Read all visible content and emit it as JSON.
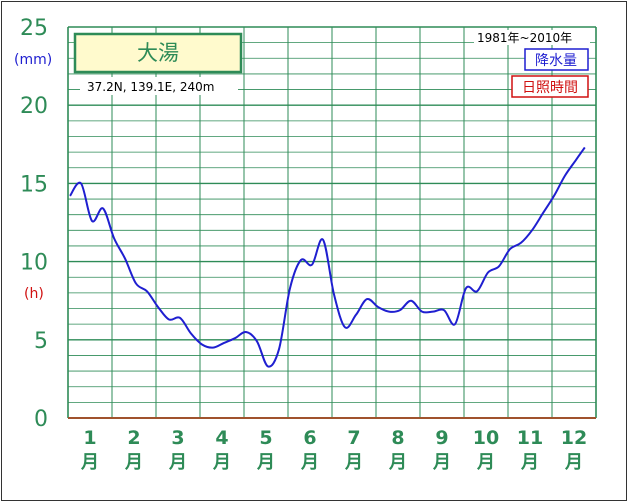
{
  "chart_data": {
    "type": "line",
    "title": "大湯",
    "location": "37.2N,  139.1E,  240m",
    "period": "1981年~2010年",
    "legend": [
      {
        "label": "降水量",
        "color": "#1f1fd0"
      },
      {
        "label": "日照時間",
        "color": "#d01010"
      }
    ],
    "units": {
      "precip": "(mm)",
      "sunshine": "(h)"
    },
    "yticks": [
      "0",
      "5",
      "10",
      "15",
      "20",
      "25"
    ],
    "ylim": [
      0,
      25
    ],
    "xlim": [
      1,
      12.7
    ],
    "months": [
      {
        "num": "1",
        "kanji": "月"
      },
      {
        "num": "2",
        "kanji": "月"
      },
      {
        "num": "3",
        "kanji": "月"
      },
      {
        "num": "4",
        "kanji": "月"
      },
      {
        "num": "5",
        "kanji": "月"
      },
      {
        "num": "6",
        "kanji": "月"
      },
      {
        "num": "7",
        "kanji": "月"
      },
      {
        "num": "8",
        "kanji": "月"
      },
      {
        "num": "9",
        "kanji": "月"
      },
      {
        "num": "10",
        "kanji": "月"
      },
      {
        "num": "11",
        "kanji": "月"
      },
      {
        "num": "12",
        "kanji": "月"
      }
    ],
    "series": [
      {
        "name": "降水量",
        "color": "#1f1fd0",
        "x": [
          1.0,
          1.25,
          1.5,
          1.75,
          2.0,
          2.25,
          2.5,
          2.75,
          3.0,
          3.25,
          3.5,
          3.75,
          4.0,
          4.25,
          4.5,
          4.75,
          5.0,
          5.25,
          5.5,
          5.75,
          6.0,
          6.25,
          6.5,
          6.75,
          7.0,
          7.25,
          7.5,
          7.75,
          8.0,
          8.25,
          8.5,
          8.75,
          9.0,
          9.25,
          9.5,
          9.75,
          10.0,
          10.25,
          10.5,
          10.75,
          11.0,
          11.25,
          11.5,
          11.75,
          12.0,
          12.25,
          12.5,
          12.7
        ],
        "y": [
          14.2,
          15.0,
          12.6,
          13.4,
          11.5,
          10.2,
          8.6,
          8.1,
          7.1,
          6.3,
          6.4,
          5.4,
          4.7,
          4.5,
          4.8,
          5.1,
          5.5,
          4.9,
          3.3,
          4.4,
          8.3,
          10.1,
          9.8,
          11.4,
          7.9,
          5.8,
          6.6,
          7.6,
          7.1,
          6.8,
          6.9,
          7.5,
          6.8,
          6.8,
          6.9,
          6.0,
          8.3,
          8.1,
          9.3,
          9.7,
          10.8,
          11.2,
          12.0,
          13.1,
          14.2,
          15.5,
          16.5,
          17.3
        ]
      }
    ],
    "grid": true
  }
}
